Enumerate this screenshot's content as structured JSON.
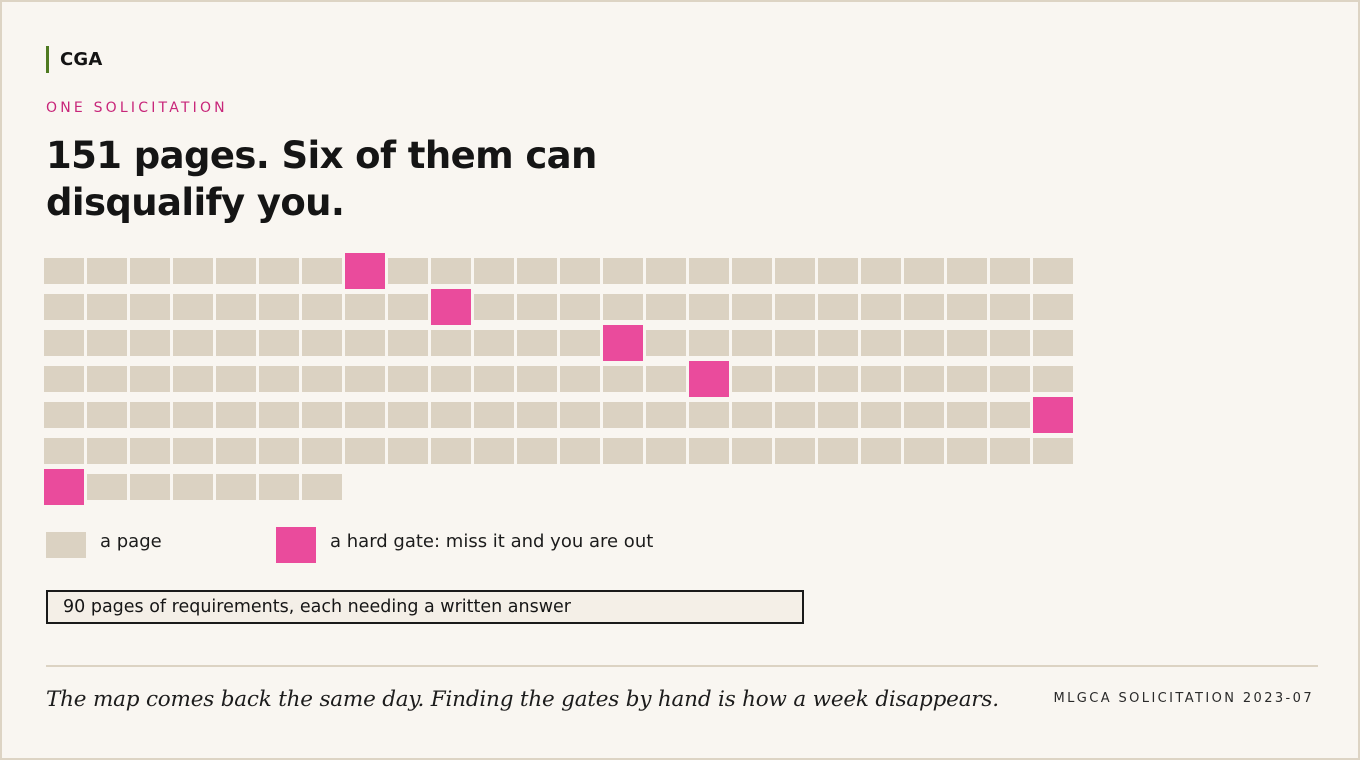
{
  "brand": {
    "name": "CGA",
    "accent_color": "#4f7a21"
  },
  "header": {
    "eyebrow": "ONE SOLICITATION",
    "headline": "151 pages. Six of them can disqualify you."
  },
  "chart_data": {
    "type": "waffle",
    "total_pages": 151,
    "gate_pages": [
      8,
      34,
      62,
      88,
      120,
      145
    ],
    "colors": {
      "page": "#dbd2c2",
      "gate": "#ea4b9c",
      "eyebrow": "#c8267a"
    }
  },
  "legend": {
    "page_label": "a page",
    "gate_label": "a hard gate: miss it and you are out"
  },
  "callout": {
    "text": "90 pages of requirements, each needing a written answer"
  },
  "footer": {
    "quote": "The map comes back the same day. Finding the gates by hand is how a week disappears.",
    "reference": "MLGCA SOLICITATION 2023-07"
  }
}
